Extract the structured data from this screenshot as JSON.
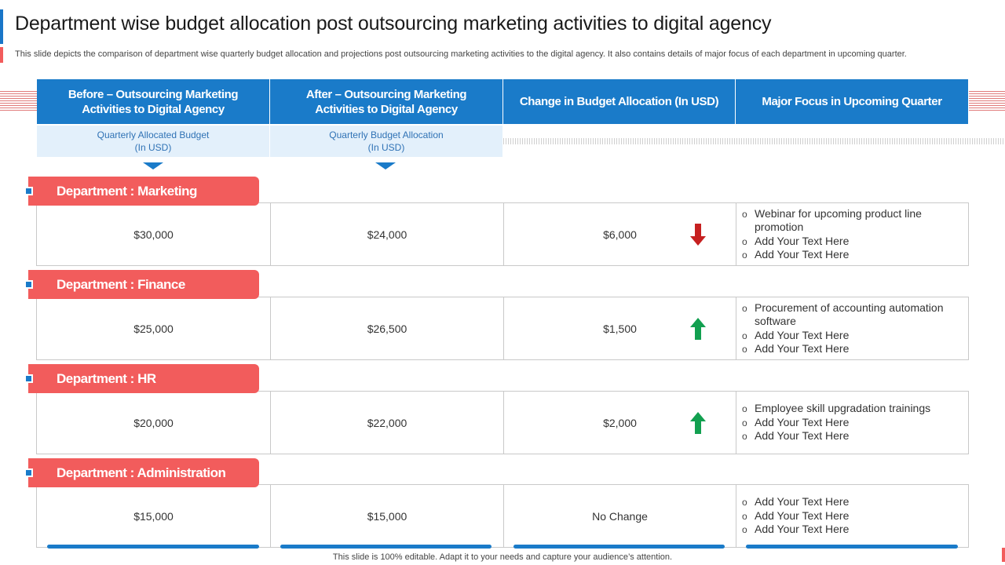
{
  "title": "Department wise budget allocation post outsourcing marketing activities to digital agency",
  "subtitle": "This slide depicts the comparison of department wise quarterly budget allocation and projections post outsourcing marketing activities to the digital agency. It also contains details of major focus of each department in upcoming quarter.",
  "headers": {
    "before": "Before – Outsourcing Marketing Activities to Digital Agency",
    "after": "After – Outsourcing Marketing Activities to Digital Agency",
    "change": "Change in Budget Allocation (In USD)",
    "focus": "Major Focus in Upcoming Quarter"
  },
  "subheaders": {
    "before_line1": "Quarterly Allocated Budget",
    "before_line2": "(In USD)",
    "after_line1": "Quarterly Budget Allocation",
    "after_line2": "(In USD)"
  },
  "departments": [
    {
      "name": "Department : Marketing",
      "before": "$30,000",
      "after": "$24,000",
      "change": "$6,000",
      "trend": "down",
      "focus": [
        "Webinar for upcoming product line promotion",
        "Add Your Text Here",
        "Add Your Text Here"
      ]
    },
    {
      "name": "Department : Finance",
      "before": "$25,000",
      "after": "$26,500",
      "change": "$1,500",
      "trend": "up",
      "focus": [
        "Procurement of accounting automation software",
        "Add Your Text Here",
        "Add Your Text Here"
      ]
    },
    {
      "name": "Department : HR",
      "before": "$20,000",
      "after": "$22,000",
      "change": "$2,000",
      "trend": "up",
      "focus": [
        "Employee skill upgradation trainings",
        "Add Your Text Here",
        "Add Your Text Here"
      ]
    },
    {
      "name": "Department : Administration",
      "before": "$15,000",
      "after": "$15,000",
      "change": "No Change",
      "trend": "none",
      "focus": [
        "Add Your Text Here",
        "Add Your Text Here",
        "Add Your Text Here"
      ]
    }
  ],
  "icons": {
    "down": "arrow-down-icon",
    "up": "arrow-up-icon"
  },
  "colors": {
    "accent_blue": "#1a7bc9",
    "accent_red": "#f25c5c",
    "arrow_down": "#c62020",
    "arrow_up": "#12a050"
  },
  "footer": "This slide is 100% editable. Adapt it to your needs and capture your audience’s attention."
}
